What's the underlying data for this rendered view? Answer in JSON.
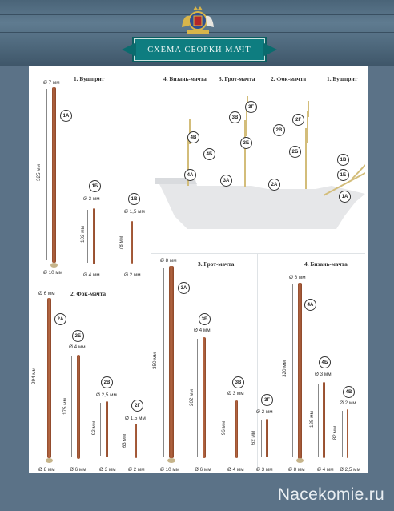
{
  "header": {
    "banner": "СХЕМА СБОРКИ МАЧТ"
  },
  "colors": {
    "rod": "#a85c3a",
    "banner": "#0e7d80",
    "background": "#5b7287"
  },
  "panel1": {
    "title": "1. Бушприт",
    "rods": [
      {
        "id": "1А",
        "top": "Ø 7 мм",
        "bottom": "Ø 10 мм",
        "length": "325 мм"
      },
      {
        "id": "1Б",
        "top": "Ø 3 мм",
        "bottom": "Ø 4 мм",
        "length": "102 мм"
      },
      {
        "id": "1В",
        "top": "Ø 1,5 мм",
        "bottom": "Ø 2 мм",
        "length": "78 мм"
      }
    ]
  },
  "ship": {
    "titles": [
      "4. Бизань-мачта",
      "3. Грот-мачта",
      "2. Фок-мачта",
      "1. Бушприт"
    ],
    "labels": [
      "3Г",
      "3В",
      "2В",
      "2Г",
      "4В",
      "4Б",
      "3Б",
      "2Б",
      "1В",
      "1Б",
      "4А",
      "3А",
      "2А",
      "1А"
    ]
  },
  "panel2": {
    "title": "2. Фок-мачта",
    "rods": [
      {
        "id": "2А",
        "top": "Ø 6 мм",
        "bottom": "Ø 8 мм",
        "length": "294 мм"
      },
      {
        "id": "2Б",
        "top": "Ø 4 мм",
        "bottom": "Ø 6 мм",
        "length": "175 мм"
      },
      {
        "id": "2В",
        "top": "Ø 2,5 мм",
        "bottom": "Ø 3 мм",
        "length": "92 мм"
      },
      {
        "id": "2Г",
        "top": "Ø 1,5 мм",
        "bottom": "Ø 2 мм",
        "length": "63 мм"
      }
    ]
  },
  "panel3": {
    "title": "3. Грот-мачта",
    "rods": [
      {
        "id": "3А",
        "top": "Ø 8 мм",
        "bottom": "Ø 10 мм",
        "length": "350 мм"
      },
      {
        "id": "3Б",
        "top": "Ø 4 мм",
        "bottom": "Ø 6 мм",
        "length": "202 мм"
      },
      {
        "id": "3В",
        "top": "Ø 3 мм",
        "bottom": "Ø 4 мм",
        "length": "96 мм"
      },
      {
        "id": "3Г",
        "top": "Ø 2 мм",
        "bottom": "Ø 3 мм",
        "length": "62 мм"
      }
    ]
  },
  "panel4": {
    "title": "4. Бизань-мачта",
    "rods": [
      {
        "id": "4А",
        "top": "Ø 6 мм",
        "bottom": "Ø 8 мм",
        "length": "320 мм"
      },
      {
        "id": "4Б",
        "top": "Ø 3 мм",
        "bottom": "Ø 4 мм",
        "length": "125 мм"
      },
      {
        "id": "4В",
        "top": "Ø 2 мм",
        "bottom": "Ø 2,5 мм",
        "length": "82 мм"
      }
    ]
  },
  "watermark": "Nacekomie.ru"
}
